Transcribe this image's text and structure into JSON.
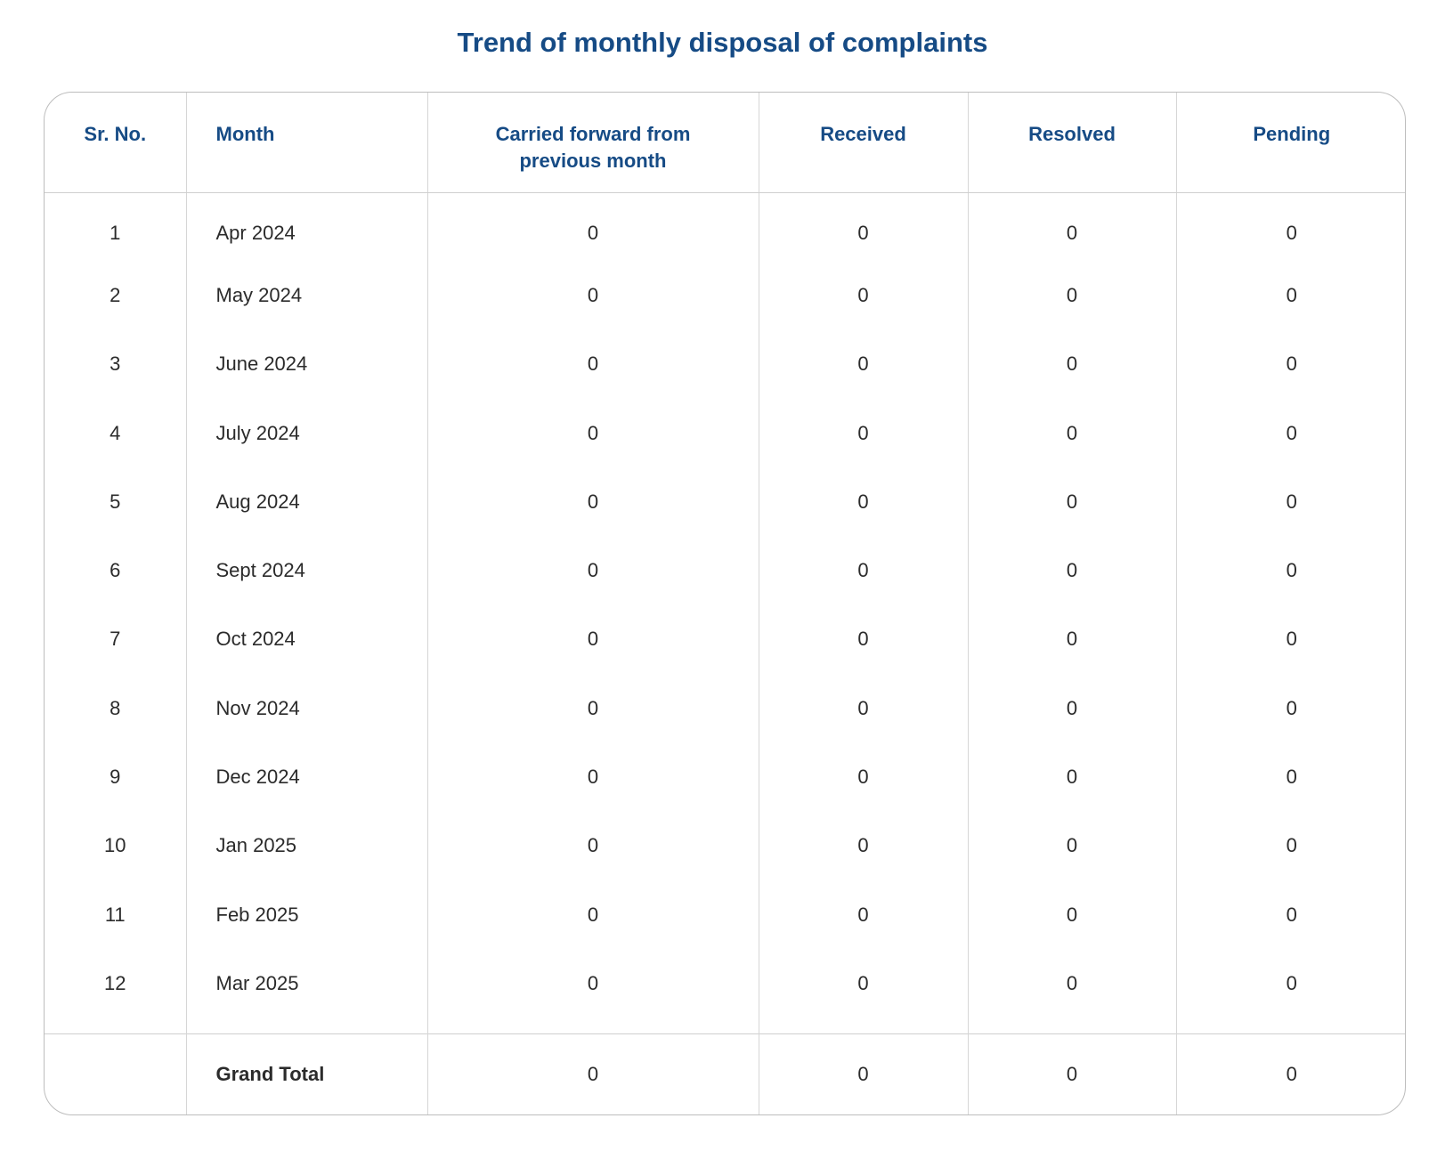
{
  "title": "Trend of monthly disposal of complaints",
  "table": {
    "headers": {
      "sr_no": "Sr. No.",
      "month": "Month",
      "carried_forward_line1": "Carried forward from",
      "carried_forward_line2": "previous month",
      "received": "Received",
      "resolved": "Resolved",
      "pending": "Pending"
    },
    "rows": [
      {
        "sr": "1",
        "month": "Apr 2024",
        "carried_forward": "0",
        "received": "0",
        "resolved": "0",
        "pending": "0"
      },
      {
        "sr": "2",
        "month": "May 2024",
        "carried_forward": "0",
        "received": "0",
        "resolved": "0",
        "pending": "0"
      },
      {
        "sr": "3",
        "month": "June 2024",
        "carried_forward": "0",
        "received": "0",
        "resolved": "0",
        "pending": "0"
      },
      {
        "sr": "4",
        "month": "July 2024",
        "carried_forward": "0",
        "received": "0",
        "resolved": "0",
        "pending": "0"
      },
      {
        "sr": "5",
        "month": "Aug 2024",
        "carried_forward": "0",
        "received": "0",
        "resolved": "0",
        "pending": "0"
      },
      {
        "sr": "6",
        "month": "Sept 2024",
        "carried_forward": "0",
        "received": "0",
        "resolved": "0",
        "pending": "0"
      },
      {
        "sr": "7",
        "month": "Oct 2024",
        "carried_forward": "0",
        "received": "0",
        "resolved": "0",
        "pending": "0"
      },
      {
        "sr": "8",
        "month": "Nov 2024",
        "carried_forward": "0",
        "received": "0",
        "resolved": "0",
        "pending": "0"
      },
      {
        "sr": "9",
        "month": "Dec 2024",
        "carried_forward": "0",
        "received": "0",
        "resolved": "0",
        "pending": "0"
      },
      {
        "sr": "10",
        "month": "Jan 2025",
        "carried_forward": "0",
        "received": "0",
        "resolved": "0",
        "pending": "0"
      },
      {
        "sr": "11",
        "month": "Feb 2025",
        "carried_forward": "0",
        "received": "0",
        "resolved": "0",
        "pending": "0"
      },
      {
        "sr": "12",
        "month": "Mar 2025",
        "carried_forward": "0",
        "received": "0",
        "resolved": "0",
        "pending": "0"
      }
    ],
    "grand_total": {
      "label": "Grand Total",
      "carried_forward": "0",
      "received": "0",
      "resolved": "0",
      "pending": "0"
    }
  },
  "colors": {
    "heading_blue": "#164b85",
    "border_gray": "#bdbdbd",
    "text_dark": "#2b2b2b"
  }
}
